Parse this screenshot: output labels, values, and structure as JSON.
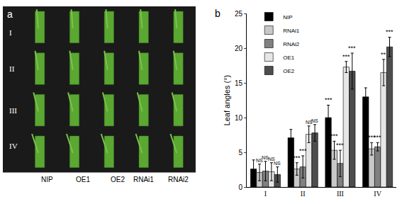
{
  "panel_a": {
    "label": "a",
    "rows": [
      "I",
      "II",
      "III",
      "IV"
    ],
    "columns": [
      "NIP",
      "OE1",
      "OE2",
      "RNAi1",
      "RNAi2"
    ]
  },
  "chart_data": {
    "type": "bar",
    "panel_label": "b",
    "categories": [
      "I",
      "II",
      "III",
      "IV"
    ],
    "y_label": "Leaf angles (°)",
    "ylim": [
      0,
      25
    ],
    "yticks": [
      0,
      5,
      10,
      15,
      20,
      25
    ],
    "legend": "top-left",
    "grid": false,
    "series": [
      {
        "name": "NIP",
        "color": "#000000",
        "values": [
          2.6,
          7.1,
          10.0,
          13.0
        ],
        "error": [
          1.3,
          1.2,
          1.8,
          1.3
        ],
        "significance": [
          null,
          null,
          "***",
          null
        ]
      },
      {
        "name": "RNAi1",
        "color": "#c8c8c8",
        "values": [
          2.1,
          2.6,
          5.3,
          5.5
        ],
        "error": [
          1.2,
          0.9,
          1.3,
          0.9
        ],
        "significance": [
          "NS",
          "***",
          "***",
          "***"
        ]
      },
      {
        "name": "RNAi2",
        "color": "#808080",
        "values": [
          2.3,
          2.9,
          3.4,
          5.8
        ],
        "error": [
          1.4,
          1.6,
          1.9,
          0.6
        ],
        "significance": [
          "NS",
          "***",
          "***",
          "***"
        ]
      },
      {
        "name": "OE1",
        "color": "#e6e6e6",
        "values": [
          2.2,
          7.6,
          17.3,
          16.5
        ],
        "error": [
          1.3,
          1.2,
          0.8,
          1.9
        ],
        "significance": [
          "NS",
          "NS",
          "***",
          "**"
        ]
      },
      {
        "name": "OE2",
        "color": "#4d4d4d",
        "values": [
          1.8,
          7.8,
          16.7,
          20.2
        ],
        "error": [
          1.1,
          1.2,
          2.6,
          1.4
        ],
        "significance": [
          "NS",
          "NS",
          "***",
          "***"
        ]
      }
    ]
  }
}
